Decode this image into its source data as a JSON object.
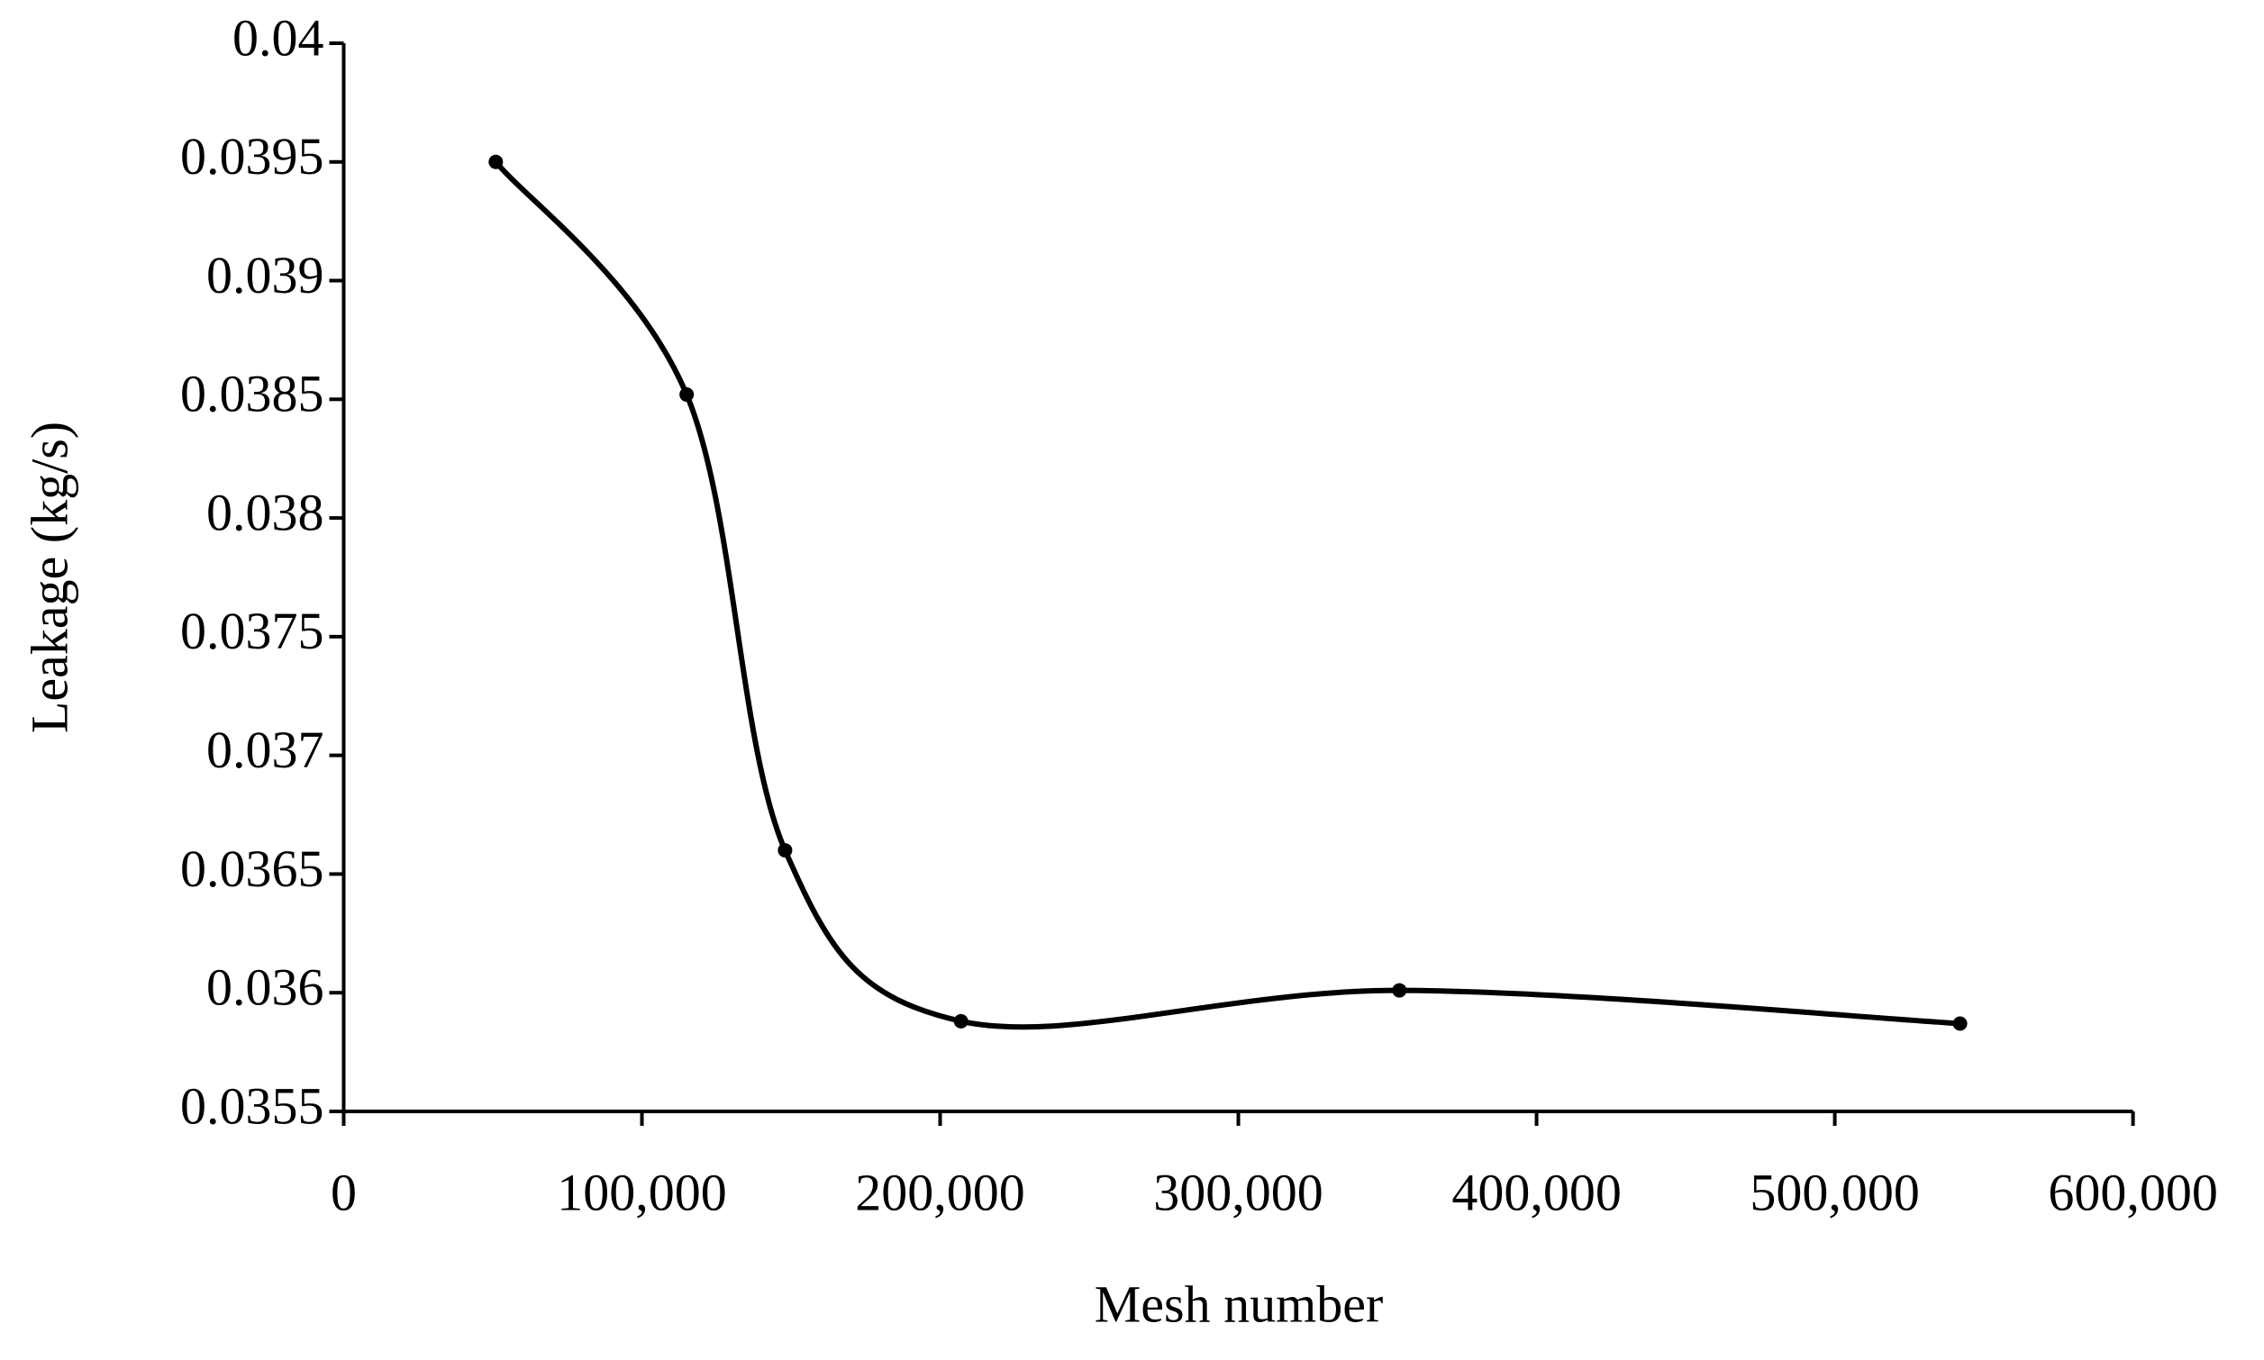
{
  "chart_data": {
    "type": "line",
    "xlabel": "Mesh number",
    "ylabel": "Leakage (kg/s)",
    "x": [
      51000,
      115000,
      148000,
      207000,
      354000,
      542000
    ],
    "series": [
      {
        "color": "#000000",
        "values": [
          0.0395,
          0.03852,
          0.0366,
          0.03588,
          0.03601,
          0.03587
        ]
      }
    ],
    "xlim": [
      0,
      600000
    ],
    "xticks": [
      0,
      {
        "value": 100000,
        "label": "100,000"
      },
      {
        "value": 200000,
        "label": "200,000"
      },
      {
        "value": 300000,
        "label": "300,000"
      },
      {
        "value": 400000,
        "label": "400,000"
      },
      {
        "value": 500000,
        "label": "500,000"
      },
      {
        "value": 600000,
        "label": "600,000"
      }
    ],
    "ylim": [
      0.0355,
      0.04
    ],
    "yticks": [
      0.0355,
      0.036,
      0.0365,
      0.037,
      0.0375,
      0.038,
      0.0385,
      0.039,
      0.0395,
      0.04
    ],
    "grid": false
  }
}
